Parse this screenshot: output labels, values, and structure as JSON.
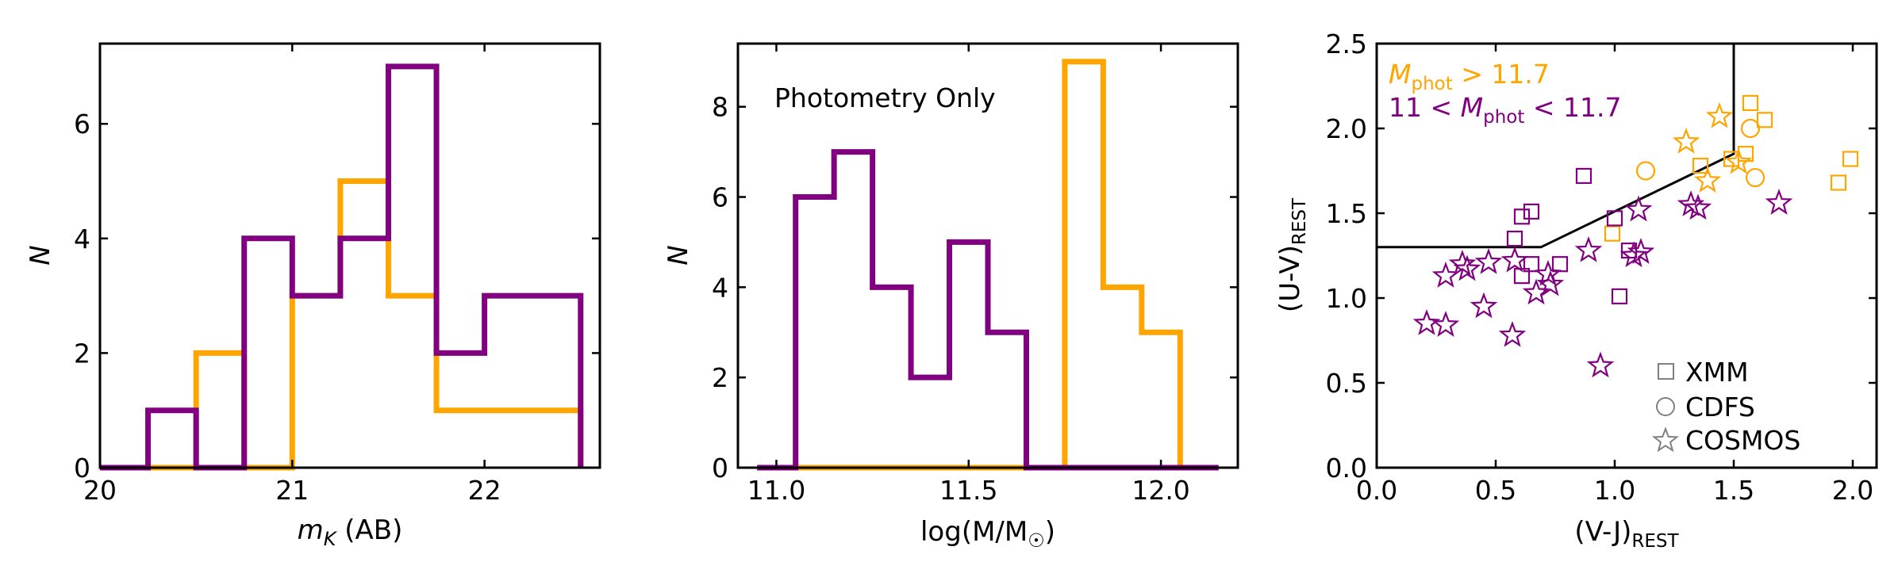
{
  "colors": {
    "orange": "#FFA500",
    "purple": "#800080",
    "axis": "#000000",
    "legend_marker": "#808080"
  },
  "chart_data": [
    {
      "type": "histogram",
      "title": "",
      "xlabel_main": "m",
      "xlabel_sub": "K",
      "xlabel_suffix": " (AB)",
      "ylabel": "N",
      "xlim": [
        20.0,
        22.6
      ],
      "ylim": [
        0,
        7.4
      ],
      "xticks": [
        "20",
        "21",
        "22"
      ],
      "xtick_values": [
        20,
        21,
        22
      ],
      "yticks": [
        "0",
        "2",
        "4",
        "6"
      ],
      "ytick_values": [
        0,
        2,
        4,
        6
      ],
      "series": [
        {
          "name": "orange",
          "color_key": "orange",
          "edges": [
            20.0,
            20.5,
            20.75,
            21.0,
            21.25,
            21.5,
            21.75,
            22.0,
            22.25,
            22.5
          ],
          "values": [
            0,
            2,
            0,
            3,
            5,
            3,
            1,
            1,
            1
          ]
        },
        {
          "name": "purple",
          "color_key": "purple",
          "edges": [
            20.0,
            20.25,
            20.5,
            20.75,
            21.0,
            21.25,
            21.5,
            21.75,
            22.0,
            22.5
          ],
          "values": [
            0,
            1,
            0,
            4,
            3,
            4,
            7,
            2,
            3
          ]
        }
      ]
    },
    {
      "type": "histogram",
      "title": "",
      "annotation": "Photometry Only",
      "xlabel_main": "log(M/M",
      "xlabel_sub": "☉",
      "xlabel_suffix": ")",
      "ylabel": "N",
      "xlim": [
        10.9,
        12.2
      ],
      "ylim": [
        0,
        9.4
      ],
      "xticks": [
        "11.0",
        "11.5",
        "12.0"
      ],
      "xtick_values": [
        11.0,
        11.5,
        12.0
      ],
      "yticks": [
        "0",
        "2",
        "4",
        "6",
        "8"
      ],
      "ytick_values": [
        0,
        2,
        4,
        6,
        8
      ],
      "series": [
        {
          "name": "orange",
          "color_key": "orange",
          "edges": [
            10.95,
            11.75,
            11.85,
            11.95,
            12.05
          ],
          "values": [
            0,
            9,
            4,
            3
          ]
        },
        {
          "name": "purple",
          "color_key": "purple",
          "edges": [
            10.95,
            11.05,
            11.15,
            11.25,
            11.35,
            11.45,
            11.55,
            11.65,
            12.15
          ],
          "values": [
            0,
            6,
            7,
            4,
            2,
            5,
            3,
            0
          ]
        }
      ]
    },
    {
      "type": "scatter",
      "title": "",
      "xlabel": "(V-J)",
      "xlabel_sub": "REST",
      "ylabel": "(U-V)",
      "ylabel_sub": "REST",
      "xlim": [
        0.0,
        2.1
      ],
      "ylim": [
        0.0,
        2.5
      ],
      "xticks": [
        "0.0",
        "0.5",
        "1.0",
        "1.5",
        "2.0"
      ],
      "xtick_values": [
        0.0,
        0.5,
        1.0,
        1.5,
        2.0
      ],
      "yticks": [
        "0.0",
        "0.5",
        "1.0",
        "1.5",
        "2.0",
        "2.5"
      ],
      "ytick_values": [
        0.0,
        0.5,
        1.0,
        1.5,
        2.0,
        2.5
      ],
      "selection_boundary": [
        [
          0.0,
          1.3
        ],
        [
          0.69,
          1.3
        ],
        [
          1.5,
          1.85
        ],
        [
          1.5,
          2.5
        ]
      ],
      "annotations": {
        "orange_main": "M",
        "orange_sub": "phot",
        "orange_rest": " > 11.7",
        "purple_pre": "11 < ",
        "purple_main": "M",
        "purple_sub": "phot",
        "purple_rest": " < 11.7"
      },
      "legend": [
        {
          "label": "XMM",
          "marker": "square"
        },
        {
          "label": "CDFS",
          "marker": "circle"
        },
        {
          "label": "COSMOS",
          "marker": "star"
        }
      ],
      "legend_placement": "lower-right",
      "series": [
        {
          "name": "Mphot > 11.7",
          "color_key": "orange",
          "points": [
            {
              "x": 1.57,
              "y": 2.15,
              "marker": "square"
            },
            {
              "x": 1.63,
              "y": 2.05,
              "marker": "square"
            },
            {
              "x": 1.36,
              "y": 1.78,
              "marker": "square"
            },
            {
              "x": 1.49,
              "y": 1.82,
              "marker": "square"
            },
            {
              "x": 1.55,
              "y": 1.85,
              "marker": "square"
            },
            {
              "x": 1.94,
              "y": 1.68,
              "marker": "square"
            },
            {
              "x": 1.99,
              "y": 1.82,
              "marker": "square"
            },
            {
              "x": 0.99,
              "y": 1.38,
              "marker": "square"
            },
            {
              "x": 1.57,
              "y": 2.0,
              "marker": "circle"
            },
            {
              "x": 1.13,
              "y": 1.75,
              "marker": "circle"
            },
            {
              "x": 1.59,
              "y": 1.71,
              "marker": "circle"
            },
            {
              "x": 1.44,
              "y": 2.07,
              "marker": "star"
            },
            {
              "x": 1.3,
              "y": 1.92,
              "marker": "star"
            },
            {
              "x": 1.39,
              "y": 1.69,
              "marker": "star"
            },
            {
              "x": 1.52,
              "y": 1.8,
              "marker": "star"
            }
          ]
        },
        {
          "name": "11 < Mphot < 11.7",
          "color_key": "purple",
          "points": [
            {
              "x": 0.61,
              "y": 1.48,
              "marker": "square"
            },
            {
              "x": 0.65,
              "y": 1.51,
              "marker": "square"
            },
            {
              "x": 0.58,
              "y": 1.35,
              "marker": "square"
            },
            {
              "x": 0.61,
              "y": 1.13,
              "marker": "square"
            },
            {
              "x": 0.65,
              "y": 1.2,
              "marker": "square"
            },
            {
              "x": 0.77,
              "y": 1.2,
              "marker": "square"
            },
            {
              "x": 0.87,
              "y": 1.72,
              "marker": "square"
            },
            {
              "x": 1.0,
              "y": 1.47,
              "marker": "square"
            },
            {
              "x": 1.02,
              "y": 1.01,
              "marker": "square"
            },
            {
              "x": 1.06,
              "y": 1.28,
              "marker": "square"
            },
            {
              "x": 0.21,
              "y": 0.85,
              "marker": "star"
            },
            {
              "x": 0.29,
              "y": 0.84,
              "marker": "star"
            },
            {
              "x": 0.29,
              "y": 1.13,
              "marker": "star"
            },
            {
              "x": 0.36,
              "y": 1.2,
              "marker": "star"
            },
            {
              "x": 0.38,
              "y": 1.17,
              "marker": "star"
            },
            {
              "x": 0.45,
              "y": 0.95,
              "marker": "star"
            },
            {
              "x": 0.47,
              "y": 1.21,
              "marker": "star"
            },
            {
              "x": 0.57,
              "y": 0.78,
              "marker": "star"
            },
            {
              "x": 0.58,
              "y": 1.22,
              "marker": "star"
            },
            {
              "x": 0.67,
              "y": 1.03,
              "marker": "star"
            },
            {
              "x": 0.72,
              "y": 1.14,
              "marker": "star"
            },
            {
              "x": 0.73,
              "y": 1.08,
              "marker": "star"
            },
            {
              "x": 0.89,
              "y": 1.28,
              "marker": "star"
            },
            {
              "x": 0.94,
              "y": 0.6,
              "marker": "star"
            },
            {
              "x": 1.08,
              "y": 1.25,
              "marker": "star"
            },
            {
              "x": 1.1,
              "y": 1.52,
              "marker": "star"
            },
            {
              "x": 1.11,
              "y": 1.27,
              "marker": "star"
            },
            {
              "x": 1.32,
              "y": 1.55,
              "marker": "star"
            },
            {
              "x": 1.35,
              "y": 1.53,
              "marker": "star"
            },
            {
              "x": 1.69,
              "y": 1.56,
              "marker": "star"
            }
          ]
        }
      ]
    }
  ]
}
